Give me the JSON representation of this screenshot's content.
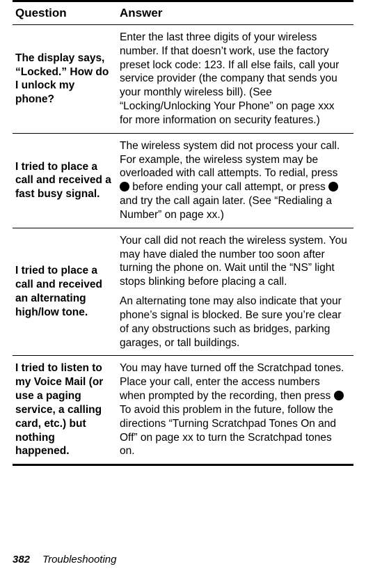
{
  "header": {
    "question_label": "Question",
    "answer_label": "Answer"
  },
  "rows": [
    {
      "question": "The display says, “Locked.” How do I unlock my phone?",
      "answer_paragraphs": [
        "Enter the last three digits of your wireless number. If that doesn’t work, use the factory preset lock code: 123. If all else fails, call your service provider (the company that sends you your monthly wireless bill). (See “Locking/Unlocking Your Phone” on page xxx for more information on security features.)"
      ]
    },
    {
      "question": "I tried to place a call and received a fast busy signal.",
      "answer_paragraphs": [
        "The wireless system did not process your call. For example, the wireless system may be overloaded with call attempts. To redial, press [ICON] before ending your call attempt, or press [ICON] and try the call again later. (See “Redialing a Number” on page xx.)"
      ]
    },
    {
      "question": "I tried to place a call and received an alternating high/low tone.",
      "answer_paragraphs": [
        "Your call did not reach the wireless system. You may have dialed the number too soon after turning the phone on. Wait until the “NS” light stops blinking before placing a call.",
        "An alternating tone may also indicate that your phone’s signal is blocked. Be sure you’re clear of any obstructions such as bridges, parking garages, or tall buildings."
      ]
    },
    {
      "question": "I tried to listen to my Voice Mail (or use a paging service, a calling card, etc.) but nothing happened.",
      "answer_paragraphs": [
        "You may have turned off the Scratchpad tones. Place your call, enter the access numbers when prompted by the recording, then press [ICON]     To avoid this problem in the future, follow the directions “Turning Scratchpad Tones On and Off” on page xx to turn the Scratchpad tones on."
      ]
    }
  ],
  "footer": {
    "page_number": "382",
    "section": "Troubleshooting"
  }
}
